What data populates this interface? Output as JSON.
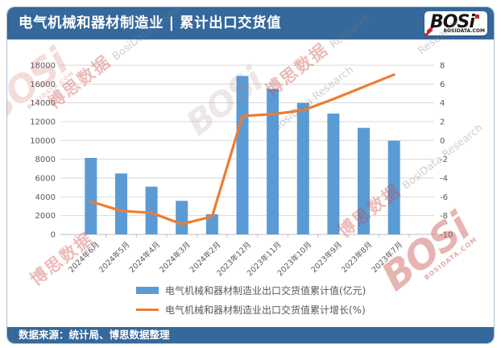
{
  "header": {
    "title": "电气机械和器材制造业 | 累计出口交货值",
    "logo_text": "BOSi",
    "logo_site": "BOSIDATA.COM"
  },
  "footer": {
    "source": "数据来源：统计局、博思数据整理"
  },
  "watermark": {
    "cn_text": "博思数据",
    "en_text": "BosiData Research",
    "en_short": "Research",
    "logo_text": "BOSi",
    "site_text": "BOSIDATA.COM"
  },
  "colors": {
    "header_bg": "#35689b",
    "frame_border": "#a9bdd1",
    "bar": "#5b9bd5",
    "line": "#ed7d31",
    "grid": "#d9d9d9",
    "axis_line": "#bfbfbf",
    "axis_text": "#595959",
    "title_text": "#ffffff"
  },
  "chart_data": {
    "type": "combo-bar-line",
    "categories": [
      "2024年6月",
      "2024年5月",
      "2024年4月",
      "2024年3月",
      "2024年2月",
      "2023年12月",
      "2023年11月",
      "2023年10月",
      "2023年9月",
      "2023年8月",
      "2023年7月"
    ],
    "series": [
      {
        "name": "电气机械和器材制造业出口交货值累计值(亿元)",
        "type": "bar",
        "axis": "left",
        "color": "#5b9bd5",
        "values": [
          8140,
          6490,
          5080,
          3570,
          2140,
          16860,
          15490,
          14000,
          12860,
          11340,
          9970
        ]
      },
      {
        "name": "电气机械和器材制造业出口交货值累计增长(%)",
        "type": "line",
        "axis": "right",
        "color": "#ed7d31",
        "values": [
          -6.5,
          -7.5,
          -7.7,
          -8.9,
          -8.1,
          2.6,
          2.8,
          3.2,
          4.4,
          5.7,
          7.0
        ]
      }
    ],
    "left_axis": {
      "min": 0,
      "max": 18000,
      "step": 2000,
      "ticks": [
        "0",
        "2000",
        "4000",
        "6000",
        "8000",
        "10000",
        "12000",
        "14000",
        "16000",
        "18000"
      ]
    },
    "right_axis": {
      "min": -10,
      "max": 8,
      "step": 2,
      "ticks": [
        "-10",
        "-8",
        "-6",
        "-4",
        "-2",
        "0",
        "2",
        "4",
        "6",
        "8"
      ]
    },
    "grid": true,
    "legend_position": "bottom"
  }
}
